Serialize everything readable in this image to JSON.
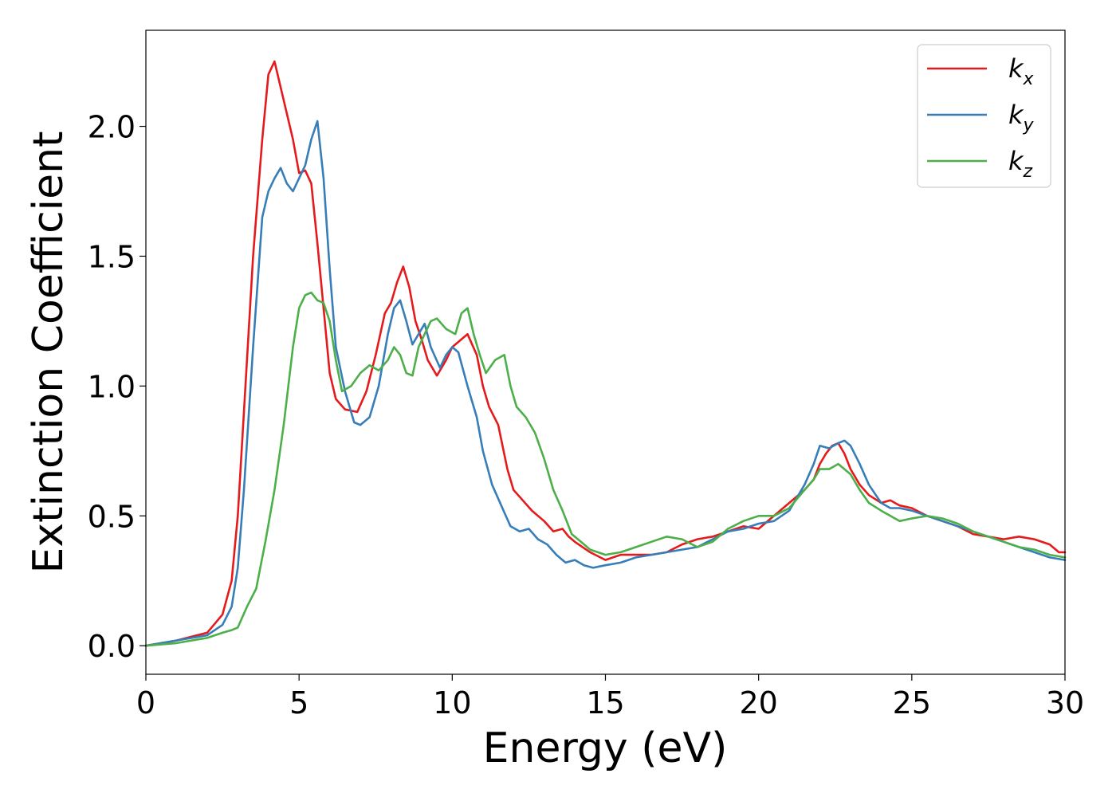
{
  "chart_data": {
    "type": "line",
    "xlabel": "Energy (eV)",
    "ylabel": "Extinction Coefficient",
    "xlim": [
      0,
      30
    ],
    "ylim": [
      -0.11,
      2.37
    ],
    "xticks": [
      0,
      5,
      10,
      15,
      20,
      25,
      30
    ],
    "xtick_labels": [
      "0",
      "5",
      "10",
      "15",
      "20",
      "25",
      "30"
    ],
    "yticks": [
      0.0,
      0.5,
      1.0,
      1.5,
      2.0
    ],
    "ytick_labels": [
      "0.0",
      "0.5",
      "1.0",
      "1.5",
      "2.0"
    ],
    "grid": false,
    "legend_position": "top-right",
    "series": [
      {
        "name": "k",
        "subscript": "x",
        "color": "#e41a1c",
        "x": [
          0,
          1,
          2,
          2.5,
          2.8,
          3.0,
          3.2,
          3.5,
          3.8,
          4.0,
          4.2,
          4.4,
          4.6,
          4.8,
          5.0,
          5.2,
          5.4,
          5.6,
          5.8,
          6.0,
          6.2,
          6.5,
          6.9,
          7.2,
          7.5,
          7.8,
          8.0,
          8.2,
          8.4,
          8.6,
          8.8,
          9.0,
          9.2,
          9.5,
          9.8,
          10.0,
          10.2,
          10.5,
          10.8,
          11.0,
          11.2,
          11.5,
          11.8,
          12.0,
          12.3,
          12.6,
          13.0,
          13.3,
          13.6,
          13.8,
          14.0,
          14.5,
          15.0,
          15.5,
          16.0,
          16.5,
          17.0,
          17.5,
          18.0,
          18.5,
          19.0,
          19.5,
          20.0,
          20.5,
          21.0,
          21.5,
          21.8,
          22.0,
          22.2,
          22.4,
          22.6,
          22.8,
          23.0,
          23.3,
          23.6,
          24.0,
          24.3,
          24.6,
          25.0,
          25.5,
          26.0,
          26.5,
          27.0,
          27.5,
          28.0,
          28.5,
          29.0,
          29.5,
          29.8,
          30.0
        ],
        "y": [
          0.0,
          0.02,
          0.05,
          0.12,
          0.25,
          0.5,
          0.9,
          1.5,
          1.95,
          2.2,
          2.25,
          2.15,
          2.05,
          1.95,
          1.82,
          1.83,
          1.78,
          1.55,
          1.3,
          1.05,
          0.95,
          0.91,
          0.9,
          0.98,
          1.12,
          1.28,
          1.32,
          1.4,
          1.46,
          1.38,
          1.25,
          1.18,
          1.1,
          1.04,
          1.1,
          1.15,
          1.17,
          1.2,
          1.12,
          1.0,
          0.92,
          0.85,
          0.68,
          0.6,
          0.56,
          0.52,
          0.48,
          0.44,
          0.45,
          0.42,
          0.4,
          0.36,
          0.33,
          0.35,
          0.35,
          0.35,
          0.36,
          0.39,
          0.41,
          0.42,
          0.44,
          0.46,
          0.45,
          0.5,
          0.55,
          0.6,
          0.64,
          0.7,
          0.74,
          0.77,
          0.78,
          0.74,
          0.68,
          0.62,
          0.58,
          0.55,
          0.56,
          0.54,
          0.53,
          0.5,
          0.48,
          0.46,
          0.43,
          0.42,
          0.41,
          0.42,
          0.41,
          0.39,
          0.36,
          0.36
        ]
      },
      {
        "name": "k",
        "subscript": "y",
        "color": "#377eb8",
        "x": [
          0,
          1,
          2,
          2.5,
          2.8,
          3.0,
          3.2,
          3.5,
          3.8,
          4.0,
          4.2,
          4.4,
          4.6,
          4.8,
          5.0,
          5.2,
          5.4,
          5.6,
          5.8,
          6.0,
          6.2,
          6.5,
          6.8,
          7.0,
          7.3,
          7.6,
          7.9,
          8.1,
          8.3,
          8.5,
          8.7,
          8.9,
          9.1,
          9.3,
          9.6,
          9.8,
          10.0,
          10.2,
          10.5,
          10.8,
          11.0,
          11.3,
          11.6,
          11.9,
          12.2,
          12.5,
          12.8,
          13.1,
          13.4,
          13.7,
          14.0,
          14.3,
          14.6,
          15.0,
          15.5,
          16.0,
          16.5,
          17.0,
          17.5,
          18.0,
          18.5,
          19.0,
          19.5,
          20.0,
          20.5,
          21.0,
          21.5,
          21.8,
          22.0,
          22.3,
          22.6,
          22.8,
          23.0,
          23.3,
          23.6,
          24.0,
          24.3,
          24.6,
          25.0,
          25.5,
          26.0,
          26.5,
          27.0,
          27.5,
          28.0,
          28.5,
          29.0,
          29.5,
          30.0
        ],
        "y": [
          0.0,
          0.02,
          0.04,
          0.08,
          0.15,
          0.3,
          0.6,
          1.15,
          1.65,
          1.75,
          1.8,
          1.84,
          1.78,
          1.75,
          1.8,
          1.85,
          1.95,
          2.02,
          1.8,
          1.45,
          1.15,
          0.98,
          0.86,
          0.85,
          0.88,
          1.0,
          1.2,
          1.3,
          1.33,
          1.25,
          1.16,
          1.2,
          1.24,
          1.15,
          1.07,
          1.12,
          1.15,
          1.13,
          1.0,
          0.88,
          0.75,
          0.62,
          0.54,
          0.46,
          0.44,
          0.45,
          0.41,
          0.39,
          0.35,
          0.32,
          0.33,
          0.31,
          0.3,
          0.31,
          0.32,
          0.34,
          0.35,
          0.36,
          0.37,
          0.38,
          0.41,
          0.44,
          0.45,
          0.47,
          0.48,
          0.52,
          0.62,
          0.7,
          0.77,
          0.76,
          0.78,
          0.79,
          0.77,
          0.7,
          0.62,
          0.55,
          0.53,
          0.53,
          0.52,
          0.5,
          0.48,
          0.46,
          0.44,
          0.42,
          0.4,
          0.38,
          0.36,
          0.34,
          0.33
        ]
      },
      {
        "name": "k",
        "subscript": "z",
        "color": "#4daf4a",
        "x": [
          0,
          1,
          2,
          2.5,
          2.8,
          3.0,
          3.3,
          3.6,
          3.9,
          4.2,
          4.5,
          4.8,
          5.0,
          5.2,
          5.4,
          5.6,
          5.8,
          6.0,
          6.2,
          6.4,
          6.7,
          7.0,
          7.3,
          7.6,
          7.9,
          8.1,
          8.3,
          8.5,
          8.7,
          8.9,
          9.1,
          9.3,
          9.5,
          9.8,
          10.1,
          10.3,
          10.5,
          10.7,
          10.9,
          11.1,
          11.4,
          11.7,
          11.9,
          12.1,
          12.4,
          12.7,
          13.0,
          13.3,
          13.6,
          13.9,
          14.2,
          14.5,
          15.0,
          15.5,
          16.0,
          16.5,
          17.0,
          17.5,
          18.0,
          18.5,
          19.0,
          19.5,
          20.0,
          20.5,
          21.0,
          21.5,
          21.8,
          22.0,
          22.3,
          22.6,
          23.0,
          23.3,
          23.6,
          24.0,
          24.3,
          24.6,
          25.0,
          25.5,
          26.0,
          26.5,
          27.0,
          27.5,
          28.0,
          28.5,
          29.0,
          29.5,
          30.0
        ],
        "y": [
          0.0,
          0.01,
          0.03,
          0.05,
          0.06,
          0.07,
          0.15,
          0.22,
          0.4,
          0.6,
          0.85,
          1.15,
          1.3,
          1.35,
          1.36,
          1.33,
          1.32,
          1.25,
          1.1,
          0.98,
          1.0,
          1.05,
          1.08,
          1.06,
          1.1,
          1.15,
          1.12,
          1.05,
          1.04,
          1.15,
          1.2,
          1.25,
          1.26,
          1.22,
          1.2,
          1.28,
          1.3,
          1.2,
          1.12,
          1.05,
          1.1,
          1.12,
          1.0,
          0.92,
          0.88,
          0.82,
          0.72,
          0.6,
          0.52,
          0.43,
          0.4,
          0.37,
          0.35,
          0.36,
          0.38,
          0.4,
          0.42,
          0.41,
          0.38,
          0.4,
          0.45,
          0.48,
          0.5,
          0.5,
          0.53,
          0.6,
          0.64,
          0.68,
          0.68,
          0.7,
          0.66,
          0.6,
          0.55,
          0.52,
          0.5,
          0.48,
          0.49,
          0.5,
          0.49,
          0.47,
          0.44,
          0.42,
          0.4,
          0.38,
          0.37,
          0.35,
          0.34
        ]
      }
    ]
  }
}
